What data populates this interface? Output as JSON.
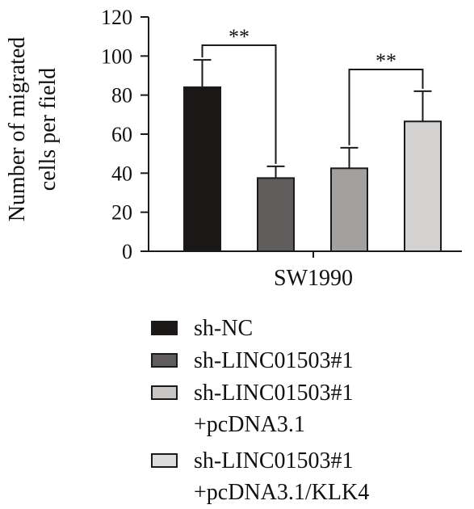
{
  "chart_data": {
    "type": "bar",
    "ylabel_line1": "Number of migrated",
    "ylabel_line2": "cells per field",
    "xlabel": "SW1990",
    "ylim": [
      0,
      120
    ],
    "yticks": [
      0,
      20,
      40,
      60,
      80,
      100,
      120
    ],
    "series": [
      {
        "name": "sh-NC",
        "value": 84,
        "error": 14,
        "color": "#1a1716"
      },
      {
        "name": "sh-LINC01503#1",
        "value": 37.5,
        "error": 6,
        "color": "#5f5c5b"
      },
      {
        "name": "sh-LINC01503#1 +pcDNA3.1",
        "value": 42.5,
        "error": 10.5,
        "color": "#a3a09f"
      },
      {
        "name": "sh-LINC01503#1 +pcDNA3.1/KLK4",
        "value": 66.5,
        "error": 15.5,
        "color": "#d3d2d1"
      }
    ],
    "significance": [
      {
        "from": 0,
        "to": 1,
        "label": "**"
      },
      {
        "from": 2,
        "to": 3,
        "label": "**"
      }
    ]
  },
  "legend": [
    {
      "line1": "sh-NC",
      "line2": "",
      "color": "#1a1716"
    },
    {
      "line1": "sh-LINC01503#1",
      "line2": "",
      "color": "#5f5c5b"
    },
    {
      "line1": "sh-LINC01503#1",
      "line2": "+pcDNA3.1",
      "color": "#c9c7c6"
    },
    {
      "line1": "sh-LINC01503#1",
      "line2": "+pcDNA3.1/KLK4",
      "color": "#dddcdb"
    }
  ]
}
